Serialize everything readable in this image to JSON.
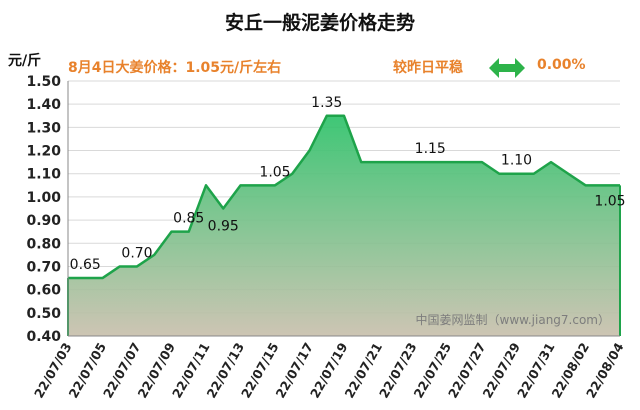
{
  "colors": {
    "accent_orange": "#e8822c",
    "line_green": "#1ea34a",
    "fill_top": "#2ec26a",
    "fill_bottom": "#c9c0ad",
    "arrow_green": "#2db34a"
  },
  "header": {
    "price_info": "8月4日大姜价格：1.05元/斤左右",
    "compare_label": "较昨日平稳",
    "change_value": "0.00%",
    "trend_icon": "flat-double-arrow-icon"
  },
  "chart_data": {
    "type": "area",
    "title": "安丘一般泥姜价格走势",
    "ylabel": "元/斤",
    "xlabel": "",
    "ylim": [
      0.4,
      1.5
    ],
    "yticks": [
      "0.40",
      "0.50",
      "0.60",
      "0.70",
      "0.80",
      "0.90",
      "1.00",
      "1.10",
      "1.20",
      "1.30",
      "1.40",
      "1.50"
    ],
    "grid": true,
    "x": [
      "22/07/03",
      "22/07/04",
      "22/07/05",
      "22/07/06",
      "22/07/07",
      "22/07/08",
      "22/07/09",
      "22/07/10",
      "22/07/11",
      "22/07/12",
      "22/07/13",
      "22/07/14",
      "22/07/15",
      "22/07/16",
      "22/07/17",
      "22/07/18",
      "22/07/19",
      "22/07/20",
      "22/07/21",
      "22/07/22",
      "22/07/23",
      "22/07/24",
      "22/07/25",
      "22/07/26",
      "22/07/27",
      "22/07/28",
      "22/07/29",
      "22/07/30",
      "22/07/31",
      "22/08/01",
      "22/08/02",
      "22/08/03",
      "22/08/04"
    ],
    "xtick_labels": [
      "22/07/03",
      "22/07/05",
      "22/07/07",
      "22/07/09",
      "22/07/11",
      "22/07/13",
      "22/07/15",
      "22/07/17",
      "22/07/19",
      "22/07/21",
      "22/07/23",
      "22/07/25",
      "22/07/27",
      "22/07/29",
      "22/07/31",
      "22/08/02",
      "22/08/04"
    ],
    "series": [
      {
        "name": "安丘一般泥姜",
        "values": [
          0.65,
          0.65,
          0.65,
          0.7,
          0.7,
          0.75,
          0.85,
          0.85,
          1.05,
          0.95,
          1.05,
          1.05,
          1.05,
          1.1,
          1.2,
          1.35,
          1.35,
          1.15,
          1.15,
          1.15,
          1.15,
          1.15,
          1.15,
          1.15,
          1.15,
          1.1,
          1.1,
          1.1,
          1.15,
          1.1,
          1.05,
          1.05,
          1.05
        ]
      }
    ],
    "data_labels": [
      {
        "index": 1,
        "text": "0.65"
      },
      {
        "index": 4,
        "text": "0.70"
      },
      {
        "index": 7,
        "text": "0.85"
      },
      {
        "index": 9,
        "text": "0.95"
      },
      {
        "index": 12,
        "text": "1.05"
      },
      {
        "index": 15,
        "text": "1.35"
      },
      {
        "index": 21,
        "text": "1.15"
      },
      {
        "index": 26,
        "text": "1.10"
      },
      {
        "index": 32,
        "text": "1.05"
      }
    ],
    "watermark": "中国姜网监制（www.jiang7.com）"
  }
}
